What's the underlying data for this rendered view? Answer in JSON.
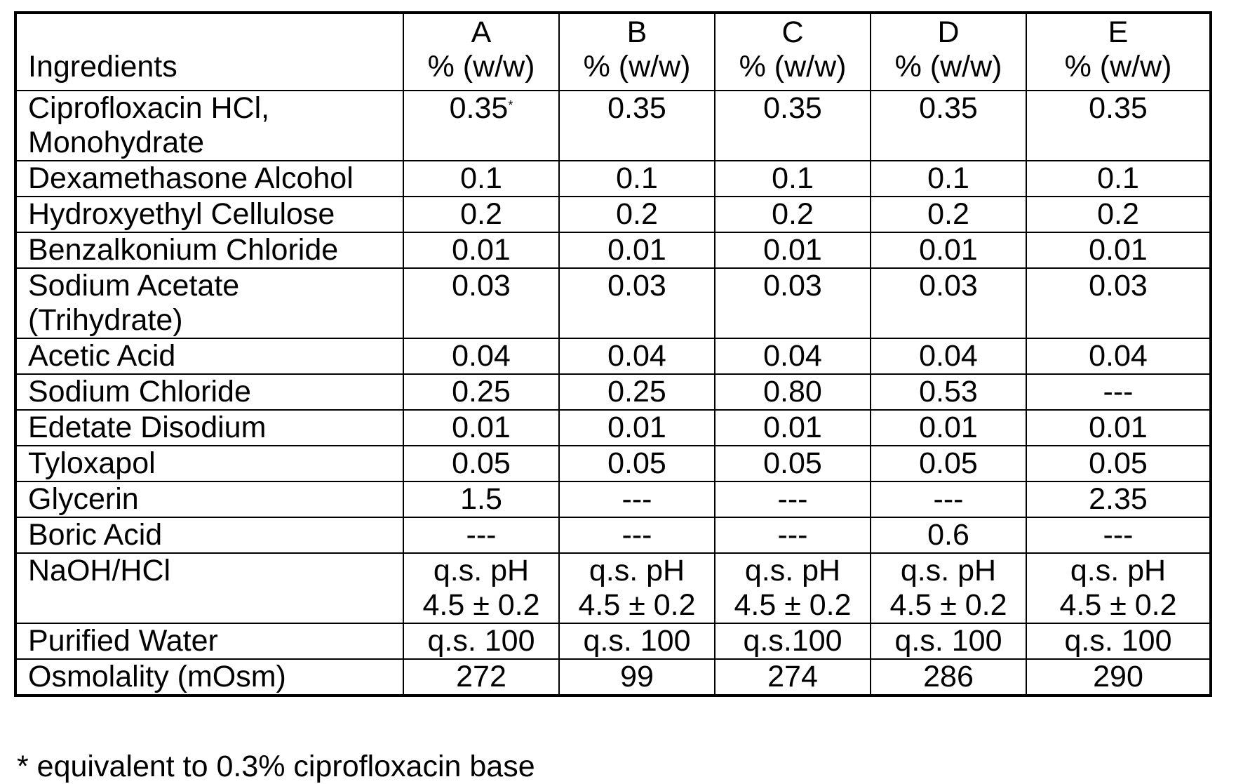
{
  "table": {
    "ingredient_header": "Ingredients",
    "columns": [
      {
        "letter": "A",
        "unit": "% (w/w)"
      },
      {
        "letter": "B",
        "unit": "% (w/w)"
      },
      {
        "letter": "C",
        "unit": "% (w/w)"
      },
      {
        "letter": "D",
        "unit": "% (w/w)"
      },
      {
        "letter": "E",
        "unit": "% (w/w)"
      }
    ],
    "footnote_marker": "*",
    "rows": [
      {
        "ingredient": [
          "Ciprofloxacin HCl,",
          "Monohydrate"
        ],
        "values": [
          [
            "0.35"
          ],
          [
            "0.35"
          ],
          [
            "0.35"
          ],
          [
            "0.35"
          ],
          [
            "0.35"
          ]
        ]
      },
      {
        "ingredient": [
          "Dexamethasone Alcohol"
        ],
        "values": [
          [
            "0.1"
          ],
          [
            "0.1"
          ],
          [
            "0.1"
          ],
          [
            "0.1"
          ],
          [
            "0.1"
          ]
        ]
      },
      {
        "ingredient": [
          "Hydroxyethyl Cellulose"
        ],
        "values": [
          [
            "0.2"
          ],
          [
            "0.2"
          ],
          [
            "0.2"
          ],
          [
            "0.2"
          ],
          [
            "0.2"
          ]
        ]
      },
      {
        "ingredient": [
          "Benzalkonium Chloride"
        ],
        "values": [
          [
            "0.01"
          ],
          [
            "0.01"
          ],
          [
            "0.01"
          ],
          [
            "0.01"
          ],
          [
            "0.01"
          ]
        ]
      },
      {
        "ingredient": [
          "Sodium Acetate",
          "(Trihydrate)"
        ],
        "values": [
          [
            "0.03"
          ],
          [
            "0.03"
          ],
          [
            "0.03"
          ],
          [
            "0.03"
          ],
          [
            "0.03"
          ]
        ]
      },
      {
        "ingredient": [
          "Acetic Acid"
        ],
        "values": [
          [
            "0.04"
          ],
          [
            "0.04"
          ],
          [
            "0.04"
          ],
          [
            "0.04"
          ],
          [
            "0.04"
          ]
        ]
      },
      {
        "ingredient": [
          "Sodium Chloride"
        ],
        "values": [
          [
            "0.25"
          ],
          [
            "0.25"
          ],
          [
            "0.80"
          ],
          [
            "0.53"
          ],
          [
            "---"
          ]
        ]
      },
      {
        "ingredient": [
          "Edetate Disodium"
        ],
        "values": [
          [
            "0.01"
          ],
          [
            "0.01"
          ],
          [
            "0.01"
          ],
          [
            "0.01"
          ],
          [
            "0.01"
          ]
        ]
      },
      {
        "ingredient": [
          "Tyloxapol"
        ],
        "values": [
          [
            "0.05"
          ],
          [
            "0.05"
          ],
          [
            "0.05"
          ],
          [
            "0.05"
          ],
          [
            "0.05"
          ]
        ]
      },
      {
        "ingredient": [
          "Glycerin"
        ],
        "values": [
          [
            "1.5"
          ],
          [
            "---"
          ],
          [
            "---"
          ],
          [
            "---"
          ],
          [
            "2.35"
          ]
        ]
      },
      {
        "ingredient": [
          "Boric Acid"
        ],
        "values": [
          [
            "---"
          ],
          [
            "---"
          ],
          [
            "---"
          ],
          [
            "0.6"
          ],
          [
            "---"
          ]
        ]
      },
      {
        "ingredient": [
          "NaOH/HCl"
        ],
        "values": [
          [
            "q.s. pH",
            "4.5 ± 0.2"
          ],
          [
            "q.s. pH",
            "4.5 ± 0.2"
          ],
          [
            "q.s. pH",
            "4.5 ± 0.2"
          ],
          [
            "q.s. pH",
            "4.5 ± 0.2"
          ],
          [
            "q.s. pH",
            "4.5 ± 0.2"
          ]
        ]
      },
      {
        "ingredient": [
          "Purified Water"
        ],
        "values": [
          [
            "q.s. 100"
          ],
          [
            "q.s. 100"
          ],
          [
            "q.s.100"
          ],
          [
            "q.s. 100"
          ],
          [
            "q.s. 100"
          ]
        ]
      },
      {
        "ingredient": [
          "Osmolality (mOsm)"
        ],
        "values": [
          [
            "272"
          ],
          [
            "99"
          ],
          [
            "274"
          ],
          [
            "286"
          ],
          [
            "290"
          ]
        ]
      }
    ]
  },
  "footnote": "* equivalent to 0.3% ciprofloxacin base"
}
